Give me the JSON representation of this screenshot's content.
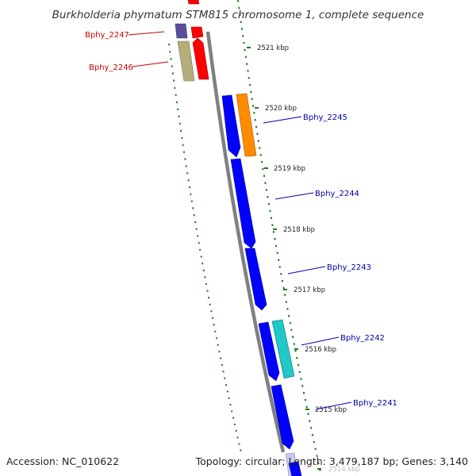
{
  "title": "Burkholderia phymatum STM815 chromosome 1, complete sequence",
  "footer": {
    "accession": "Accession: NC_010622",
    "summary": "Topology: circular; Length: 3,479,187 bp; Genes: 3,140"
  },
  "colors": {
    "backbone": "#808080",
    "tick": "#1e7a1e",
    "label_reverse": "#cc0000",
    "label_forward": "#0000aa"
  },
  "ticks": [
    {
      "label": "2521 kbp"
    },
    {
      "label": "2520 kbp"
    },
    {
      "label": "2519 kbp"
    },
    {
      "label": "2518 kbp"
    },
    {
      "label": "2517 kbp"
    },
    {
      "label": "2516 kbp"
    },
    {
      "label": "2515 kbp"
    },
    {
      "label": "2514 kbp"
    }
  ],
  "gene_labels": [
    {
      "text": "Bphy_2247",
      "strand": "reverse"
    },
    {
      "text": "Bphy_2246",
      "strand": "reverse"
    },
    {
      "text": "Bphy_2245",
      "strand": "forward"
    },
    {
      "text": "Bphy_2244",
      "strand": "forward"
    },
    {
      "text": "Bphy_2243",
      "strand": "forward"
    },
    {
      "text": "Bphy_2242",
      "strand": "forward"
    },
    {
      "text": "Bphy_2241",
      "strand": "forward"
    }
  ]
}
